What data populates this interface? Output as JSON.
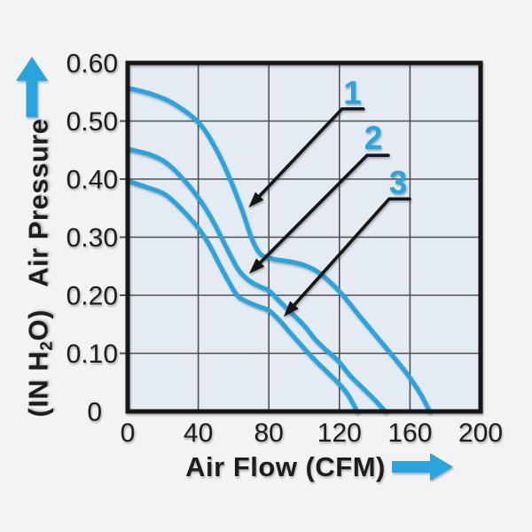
{
  "page": {
    "background": "#f2f3f4"
  },
  "chart": {
    "colors": {
      "accent": "#27a5de",
      "grid": "#515154",
      "plot_bg": "#e4ebf2",
      "border": "#161616",
      "text": "#1d1d1f"
    },
    "y_axis": {
      "unit_prefix": "(IN H",
      "unit_sub": "2",
      "unit_suffix": "O)",
      "title": "Air Pressure",
      "ticks": [
        "0.60",
        "0.50",
        "0.40",
        "0.30",
        "0.20",
        "0.10",
        "0"
      ],
      "tick_values": [
        0.6,
        0.5,
        0.4,
        0.3,
        0.2,
        0.1,
        0
      ]
    },
    "x_axis": {
      "title": "Air Flow (CFM)",
      "ticks": [
        "0",
        "40",
        "80",
        "120",
        "160",
        "200"
      ],
      "tick_values": [
        0,
        40,
        80,
        120,
        160,
        200
      ]
    }
  },
  "chart_data": {
    "type": "line",
    "title": "",
    "xlabel": "Air Flow (CFM)",
    "ylabel": "Air Pressure (IN H2O)",
    "xlim": [
      0,
      200
    ],
    "ylim": [
      0,
      0.6
    ],
    "grid": true,
    "legend_position": "none",
    "series": [
      {
        "name": "1",
        "points": [
          [
            0,
            0.557
          ],
          [
            12,
            0.548
          ],
          [
            25,
            0.532
          ],
          [
            40,
            0.498
          ],
          [
            50,
            0.452
          ],
          [
            58,
            0.4
          ],
          [
            65,
            0.345
          ],
          [
            70,
            0.3
          ],
          [
            75,
            0.272
          ],
          [
            82,
            0.263
          ],
          [
            92,
            0.258
          ],
          [
            100,
            0.252
          ],
          [
            108,
            0.24
          ],
          [
            115,
            0.222
          ],
          [
            122,
            0.2
          ],
          [
            132,
            0.162
          ],
          [
            140,
            0.133
          ],
          [
            149,
            0.1
          ],
          [
            158,
            0.066
          ],
          [
            166,
            0.03
          ],
          [
            171,
            0
          ]
        ]
      },
      {
        "name": "2",
        "points": [
          [
            0,
            0.452
          ],
          [
            12,
            0.443
          ],
          [
            21,
            0.43
          ],
          [
            30,
            0.405
          ],
          [
            40,
            0.368
          ],
          [
            47,
            0.335
          ],
          [
            53,
            0.3
          ],
          [
            58,
            0.27
          ],
          [
            63,
            0.243
          ],
          [
            69,
            0.225
          ],
          [
            75,
            0.215
          ],
          [
            80,
            0.208
          ],
          [
            86,
            0.19
          ],
          [
            92,
            0.172
          ],
          [
            100,
            0.148
          ],
          [
            106,
            0.125
          ],
          [
            112,
            0.107
          ],
          [
            119,
            0.088
          ],
          [
            126,
            0.062
          ],
          [
            134,
            0.038
          ],
          [
            140,
            0.02
          ],
          [
            146,
            0
          ]
        ]
      },
      {
        "name": "3",
        "points": [
          [
            0,
            0.397
          ],
          [
            12,
            0.385
          ],
          [
            21,
            0.374
          ],
          [
            30,
            0.35
          ],
          [
            40,
            0.316
          ],
          [
            46,
            0.288
          ],
          [
            52,
            0.253
          ],
          [
            57,
            0.225
          ],
          [
            62,
            0.2
          ],
          [
            67,
            0.19
          ],
          [
            74,
            0.181
          ],
          [
            80,
            0.174
          ],
          [
            86,
            0.157
          ],
          [
            92,
            0.136
          ],
          [
            99,
            0.112
          ],
          [
            106,
            0.089
          ],
          [
            113,
            0.068
          ],
          [
            120,
            0.047
          ],
          [
            125,
            0.028
          ],
          [
            130,
            0
          ]
        ]
      }
    ],
    "annotations": [
      {
        "label": "1",
        "label_xy": [
          127.5,
          0.55
        ],
        "bar": {
          "x1": 121.5,
          "x2": 133.5,
          "y": 0.521
        },
        "tip": [
          68.5,
          0.351
        ]
      },
      {
        "label": "2",
        "label_xy": [
          139.2,
          0.472
        ],
        "bar": {
          "x1": 135.7,
          "x2": 147.7,
          "y": 0.441
        },
        "tip": [
          68.8,
          0.237
        ]
      },
      {
        "label": "3",
        "label_xy": [
          153.3,
          0.395
        ],
        "bar": {
          "x1": 148.2,
          "x2": 159.8,
          "y": 0.366
        },
        "tip": [
          88.4,
          0.163
        ]
      }
    ]
  }
}
